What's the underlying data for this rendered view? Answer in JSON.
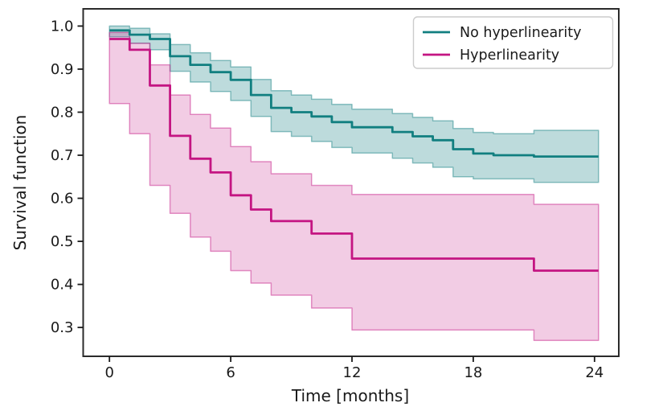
{
  "chart_data": {
    "type": "line",
    "variant": "kaplan-meier-step-with-confidence-bands",
    "title": "",
    "xlabel": "Time [months]",
    "ylabel": "Survival function",
    "xlim": [
      -1.3,
      25.2
    ],
    "ylim": [
      0.233,
      1.04
    ],
    "xticks": [
      0,
      6,
      12,
      18,
      24
    ],
    "yticks": [
      0.3,
      0.4,
      0.5,
      0.6,
      0.7,
      0.8,
      0.9,
      1.0
    ],
    "grid": false,
    "legend_position": "upper right",
    "end_time": 24.2,
    "axis": {
      "spine_color": "#2b2b2b",
      "tick_color": "#1a1a1a",
      "label_color": "#1a1a1a"
    },
    "series": [
      {
        "name": "No hyperlinearity",
        "color": "#117f80",
        "band_fill_alpha": 0.28,
        "band_edge_alpha": 0.45,
        "steps": [
          [
            0,
            0.99
          ],
          [
            1,
            0.98
          ],
          [
            2,
            0.97
          ],
          [
            3,
            0.93
          ],
          [
            4,
            0.91
          ],
          [
            5,
            0.893
          ],
          [
            6,
            0.875
          ],
          [
            7,
            0.84
          ],
          [
            8,
            0.81
          ],
          [
            9,
            0.8
          ],
          [
            10,
            0.79
          ],
          [
            11,
            0.777
          ],
          [
            12,
            0.765
          ],
          [
            14,
            0.754
          ],
          [
            15,
            0.744
          ],
          [
            16,
            0.735
          ],
          [
            17,
            0.714
          ],
          [
            18,
            0.704
          ],
          [
            19,
            0.7
          ],
          [
            21,
            0.697
          ]
        ],
        "band_upper": [
          [
            0,
            1.0
          ],
          [
            1,
            0.995
          ],
          [
            2,
            0.982
          ],
          [
            3,
            0.957
          ],
          [
            4,
            0.938
          ],
          [
            5,
            0.92
          ],
          [
            6,
            0.905
          ],
          [
            7,
            0.876
          ],
          [
            8,
            0.85
          ],
          [
            9,
            0.84
          ],
          [
            10,
            0.83
          ],
          [
            11,
            0.818
          ],
          [
            12,
            0.807
          ],
          [
            14,
            0.797
          ],
          [
            15,
            0.788
          ],
          [
            16,
            0.78
          ],
          [
            17,
            0.762
          ],
          [
            18,
            0.753
          ],
          [
            19,
            0.75
          ],
          [
            21,
            0.758
          ]
        ],
        "band_lower": [
          [
            0,
            0.975
          ],
          [
            1,
            0.96
          ],
          [
            2,
            0.945
          ],
          [
            3,
            0.895
          ],
          [
            4,
            0.87
          ],
          [
            5,
            0.848
          ],
          [
            6,
            0.827
          ],
          [
            7,
            0.79
          ],
          [
            8,
            0.755
          ],
          [
            9,
            0.744
          ],
          [
            10,
            0.732
          ],
          [
            11,
            0.718
          ],
          [
            12,
            0.705
          ],
          [
            14,
            0.693
          ],
          [
            15,
            0.682
          ],
          [
            16,
            0.672
          ],
          [
            17,
            0.65
          ],
          [
            18,
            0.645
          ],
          [
            19,
            0.645
          ],
          [
            21,
            0.637
          ]
        ]
      },
      {
        "name": "Hyperlinearity",
        "color": "#c41582",
        "band_fill_alpha": 0.22,
        "band_edge_alpha": 0.45,
        "steps": [
          [
            0,
            0.97
          ],
          [
            1,
            0.945
          ],
          [
            2,
            0.862
          ],
          [
            3,
            0.745
          ],
          [
            4,
            0.692
          ],
          [
            5,
            0.66
          ],
          [
            6,
            0.607
          ],
          [
            7,
            0.574
          ],
          [
            8,
            0.547
          ],
          [
            10,
            0.518
          ],
          [
            12,
            0.46
          ],
          [
            21,
            0.432
          ]
        ],
        "band_upper": [
          [
            0,
            0.985
          ],
          [
            1,
            0.96
          ],
          [
            2,
            0.91
          ],
          [
            3,
            0.84
          ],
          [
            4,
            0.795
          ],
          [
            5,
            0.763
          ],
          [
            6,
            0.72
          ],
          [
            7,
            0.685
          ],
          [
            8,
            0.657
          ],
          [
            10,
            0.63
          ],
          [
            12,
            0.609
          ],
          [
            21,
            0.586
          ]
        ],
        "band_lower": [
          [
            0,
            0.82
          ],
          [
            1,
            0.75
          ],
          [
            2,
            0.63
          ],
          [
            3,
            0.565
          ],
          [
            4,
            0.51
          ],
          [
            5,
            0.477
          ],
          [
            6,
            0.432
          ],
          [
            7,
            0.403
          ],
          [
            8,
            0.375
          ],
          [
            10,
            0.345
          ],
          [
            12,
            0.294
          ],
          [
            21,
            0.27
          ]
        ]
      }
    ]
  }
}
